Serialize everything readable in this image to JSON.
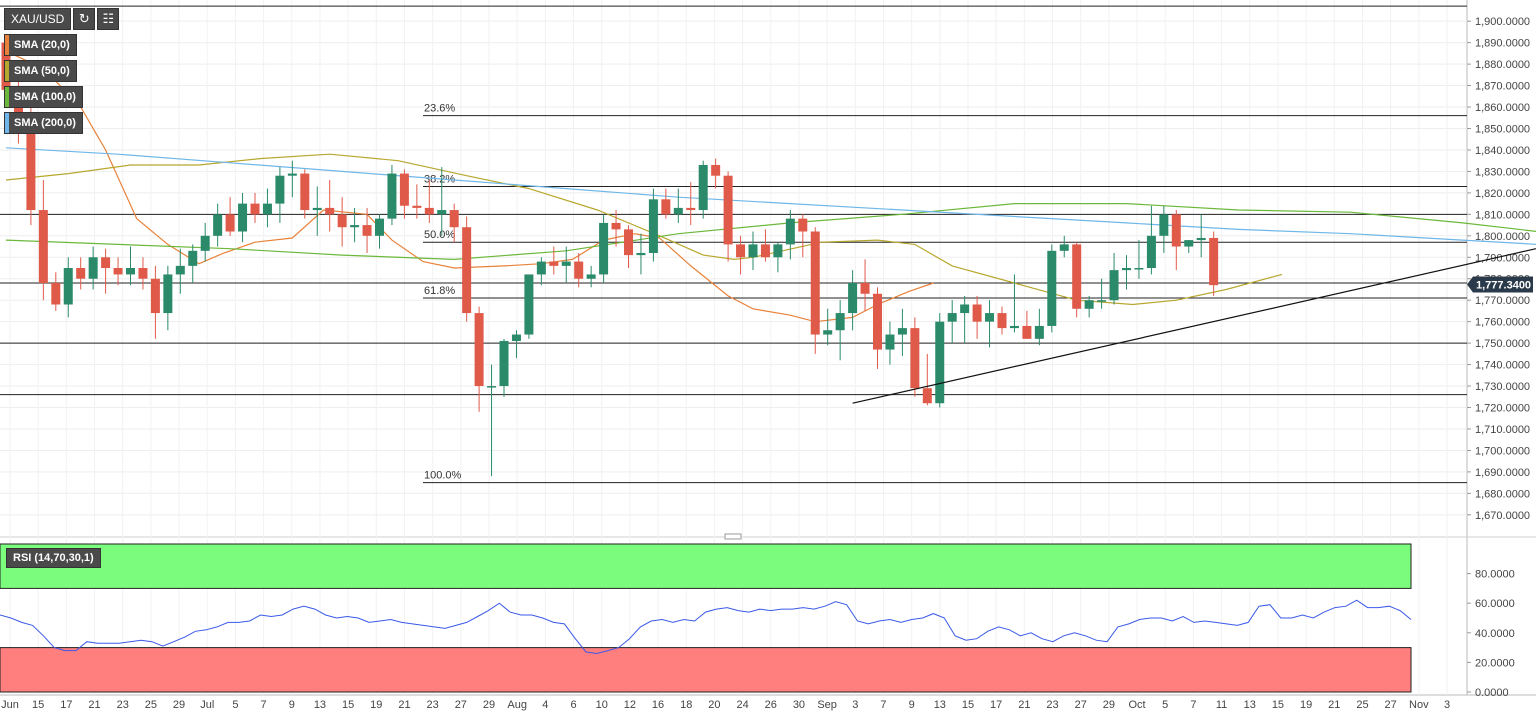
{
  "toolbar": {
    "symbol": "XAU/USD",
    "refresh_icon": "refresh-icon",
    "calendar_icon": "calendar-icon"
  },
  "indicators": [
    {
      "label": "SMA (20,0)",
      "color": "#e8823a"
    },
    {
      "label": "SMA (50,0)",
      "color": "#b8a72e"
    },
    {
      "label": "SMA (100,0)",
      "color": "#6bb83a"
    },
    {
      "label": "SMA (200,0)",
      "color": "#6fb7e8"
    }
  ],
  "rsi_label": "RSI (14,70,30,1)",
  "colors": {
    "bull": "#2a8a6a",
    "bear": "#e05a4a",
    "rsi_line": "#3a5ae8",
    "overbought_fill": "#7cfc7c",
    "oversold_fill": "#ff7f7f",
    "price_tag": "#2b3a4a"
  },
  "chart_data": {
    "type": "candlestick",
    "y_axis_ticks": [
      "1,900.0000",
      "1,890.0000",
      "1,880.0000",
      "1,870.0000",
      "1,860.0000",
      "1,850.0000",
      "1,840.0000",
      "1,830.0000",
      "1,820.0000",
      "1,810.0000",
      "1,800.0000",
      "1,790.0000",
      "1,780.0000",
      "1,770.0000",
      "1,760.0000",
      "1,750.0000",
      "1,740.0000",
      "1,730.0000",
      "1,720.0000",
      "1,710.0000",
      "1,700.0000",
      "1,690.0000",
      "1,680.0000",
      "1,670.0000"
    ],
    "ylim": [
      1662,
      1908
    ],
    "last_price_label": "1,777.3400",
    "last_price": 1777.34,
    "x_labels": [
      "Jun",
      "15",
      "17",
      "21",
      "23",
      "25",
      "29",
      "Jul",
      "5",
      "7",
      "9",
      "13",
      "15",
      "19",
      "21",
      "23",
      "27",
      "29",
      "Aug",
      "4",
      "6",
      "10",
      "12",
      "16",
      "18",
      "20",
      "24",
      "26",
      "30",
      "Sep",
      "3",
      "7",
      "9",
      "13",
      "15",
      "17",
      "21",
      "23",
      "27",
      "29",
      "Oct",
      "5",
      "7",
      "11",
      "13",
      "15",
      "19",
      "21",
      "25",
      "27",
      "Nov",
      "3"
    ],
    "fibonacci": [
      {
        "label": "23.6%",
        "value": 1856
      },
      {
        "label": "38.2%",
        "value": 1823
      },
      {
        "label": "50.0%",
        "value": 1797
      },
      {
        "label": "61.8%",
        "value": 1771
      },
      {
        "label": "100.0%",
        "value": 1685
      }
    ],
    "horizontal_levels": [
      1907,
      1810,
      1778,
      1750,
      1726
    ],
    "candles": [
      [
        1890,
        1893,
        1862,
        1868
      ],
      [
        1868,
        1875,
        1843,
        1853
      ],
      [
        1853,
        1860,
        1805,
        1812
      ],
      [
        1812,
        1826,
        1770,
        1778
      ],
      [
        1778,
        1783,
        1765,
        1768
      ],
      [
        1768,
        1790,
        1762,
        1785
      ],
      [
        1785,
        1790,
        1775,
        1780
      ],
      [
        1780,
        1795,
        1775,
        1790
      ],
      [
        1790,
        1794,
        1773,
        1785
      ],
      [
        1785,
        1790,
        1777,
        1782
      ],
      [
        1782,
        1795,
        1777,
        1785
      ],
      [
        1785,
        1790,
        1775,
        1780
      ],
      [
        1780,
        1786,
        1752,
        1764
      ],
      [
        1764,
        1786,
        1756,
        1782
      ],
      [
        1782,
        1794,
        1773,
        1786
      ],
      [
        1786,
        1796,
        1778,
        1793
      ],
      [
        1793,
        1806,
        1788,
        1800
      ],
      [
        1800,
        1815,
        1795,
        1810
      ],
      [
        1810,
        1818,
        1800,
        1802
      ],
      [
        1802,
        1820,
        1797,
        1815
      ],
      [
        1815,
        1820,
        1806,
        1810
      ],
      [
        1810,
        1822,
        1804,
        1815
      ],
      [
        1815,
        1832,
        1806,
        1828
      ],
      [
        1828,
        1835,
        1818,
        1829
      ],
      [
        1829,
        1831,
        1808,
        1812
      ],
      [
        1812,
        1823,
        1800,
        1813
      ],
      [
        1813,
        1826,
        1802,
        1810
      ],
      [
        1810,
        1818,
        1795,
        1804
      ],
      [
        1804,
        1813,
        1797,
        1805
      ],
      [
        1805,
        1813,
        1792,
        1800
      ],
      [
        1800,
        1810,
        1794,
        1808
      ],
      [
        1808,
        1833,
        1805,
        1829
      ],
      [
        1829,
        1831,
        1808,
        1814
      ],
      [
        1814,
        1824,
        1808,
        1813
      ],
      [
        1813,
        1826,
        1806,
        1810
      ],
      [
        1810,
        1832,
        1800,
        1812
      ],
      [
        1812,
        1815,
        1797,
        1804
      ],
      [
        1804,
        1809,
        1760,
        1764
      ],
      [
        1764,
        1767,
        1718,
        1730
      ],
      [
        1730,
        1740,
        1688,
        1730
      ],
      [
        1730,
        1752,
        1725,
        1751
      ],
      [
        1751,
        1756,
        1743,
        1754
      ],
      [
        1754,
        1780,
        1752,
        1782
      ],
      [
        1782,
        1790,
        1777,
        1788
      ],
      [
        1788,
        1795,
        1782,
        1786
      ],
      [
        1786,
        1795,
        1778,
        1788
      ],
      [
        1788,
        1792,
        1776,
        1780
      ],
      [
        1780,
        1786,
        1776,
        1782
      ],
      [
        1782,
        1810,
        1778,
        1806
      ],
      [
        1806,
        1812,
        1795,
        1803
      ],
      [
        1803,
        1805,
        1785,
        1791
      ],
      [
        1791,
        1801,
        1782,
        1792
      ],
      [
        1792,
        1822,
        1788,
        1817
      ],
      [
        1817,
        1822,
        1808,
        1810
      ],
      [
        1810,
        1822,
        1806,
        1813
      ],
      [
        1813,
        1825,
        1805,
        1812
      ],
      [
        1812,
        1835,
        1808,
        1833
      ],
      [
        1833,
        1836,
        1822,
        1828
      ],
      [
        1828,
        1830,
        1788,
        1796
      ],
      [
        1796,
        1800,
        1782,
        1790
      ],
      [
        1790,
        1802,
        1784,
        1796
      ],
      [
        1796,
        1803,
        1788,
        1790
      ],
      [
        1790,
        1797,
        1783,
        1796
      ],
      [
        1796,
        1812,
        1789,
        1808
      ],
      [
        1808,
        1810,
        1790,
        1802
      ],
      [
        1802,
        1804,
        1745,
        1754
      ],
      [
        1754,
        1766,
        1749,
        1756
      ],
      [
        1756,
        1770,
        1742,
        1764
      ],
      [
        1764,
        1784,
        1756,
        1778
      ],
      [
        1778,
        1789,
        1765,
        1773
      ],
      [
        1773,
        1776,
        1738,
        1747
      ],
      [
        1747,
        1760,
        1740,
        1754
      ],
      [
        1754,
        1766,
        1744,
        1757
      ],
      [
        1757,
        1762,
        1725,
        1729
      ],
      [
        1729,
        1745,
        1721,
        1722
      ],
      [
        1722,
        1764,
        1720,
        1760
      ],
      [
        1760,
        1770,
        1750,
        1764
      ],
      [
        1764,
        1772,
        1750,
        1768
      ],
      [
        1768,
        1772,
        1752,
        1760
      ],
      [
        1760,
        1770,
        1748,
        1764
      ],
      [
        1764,
        1767,
        1754,
        1757
      ],
      [
        1757,
        1782,
        1755,
        1758
      ],
      [
        1758,
        1765,
        1752,
        1752
      ],
      [
        1752,
        1766,
        1749,
        1758
      ],
      [
        1758,
        1796,
        1755,
        1793
      ],
      [
        1793,
        1800,
        1790,
        1796
      ],
      [
        1796,
        1797,
        1762,
        1766
      ],
      [
        1766,
        1772,
        1762,
        1770
      ],
      [
        1770,
        1780,
        1766,
        1770
      ],
      [
        1770,
        1792,
        1768,
        1784
      ],
      [
        1784,
        1791,
        1775,
        1785
      ],
      [
        1785,
        1798,
        1780,
        1785
      ],
      [
        1785,
        1814,
        1782,
        1800
      ],
      [
        1800,
        1814,
        1792,
        1810
      ],
      [
        1810,
        1812,
        1784,
        1795
      ],
      [
        1795,
        1798,
        1792,
        1798
      ],
      [
        1798,
        1810,
        1790,
        1799
      ],
      [
        1799,
        1802,
        1772,
        1777
      ]
    ],
    "sma": [
      {
        "name": "SMA (20,0)",
        "color": "#e8823a",
        "points": [
          [
            0,
            1886
          ],
          [
            6,
            1878
          ],
          [
            12,
            1860
          ],
          [
            16,
            1840
          ],
          [
            21,
            1808
          ],
          [
            26,
            1796
          ],
          [
            31,
            1787
          ],
          [
            35,
            1792
          ],
          [
            40,
            1797
          ],
          [
            46,
            1799
          ],
          [
            51,
            1812
          ],
          [
            58,
            1810
          ],
          [
            62,
            1798
          ],
          [
            67,
            1788
          ],
          [
            72,
            1785
          ],
          [
            80,
            1786
          ],
          [
            86,
            1787
          ],
          [
            91,
            1789
          ],
          [
            96,
            1798
          ],
          [
            101,
            1801
          ],
          [
            105,
            1799
          ],
          [
            110,
            1786
          ],
          [
            116,
            1772
          ],
          [
            120,
            1766
          ],
          [
            126,
            1763
          ],
          [
            130,
            1760
          ],
          [
            136,
            1762
          ],
          [
            140,
            1768
          ],
          [
            145,
            1774
          ],
          [
            149,
            1778
          ]
        ]
      },
      {
        "name": "SMA (50,0)",
        "color": "#b8a72e",
        "points": [
          [
            0,
            1826
          ],
          [
            10,
            1829
          ],
          [
            20,
            1833
          ],
          [
            31,
            1833
          ],
          [
            41,
            1836
          ],
          [
            52,
            1838
          ],
          [
            63,
            1835
          ],
          [
            74,
            1828
          ],
          [
            84,
            1822
          ],
          [
            95,
            1812
          ],
          [
            105,
            1800
          ],
          [
            112,
            1791
          ],
          [
            117,
            1789
          ],
          [
            120,
            1790
          ],
          [
            131,
            1797
          ],
          [
            140,
            1798
          ],
          [
            146,
            1796
          ],
          [
            152,
            1786
          ],
          [
            162,
            1778
          ],
          [
            172,
            1770
          ],
          [
            181,
            1768
          ],
          [
            188,
            1770
          ],
          [
            196,
            1775
          ],
          [
            205,
            1782
          ]
        ]
      },
      {
        "name": "SMA (100,0)",
        "color": "#6bb83a",
        "points": [
          [
            0,
            1798
          ],
          [
            18,
            1796
          ],
          [
            36,
            1794
          ],
          [
            54,
            1791
          ],
          [
            72,
            1789
          ],
          [
            90,
            1793
          ],
          [
            108,
            1801
          ],
          [
            126,
            1806
          ],
          [
            144,
            1810
          ],
          [
            162,
            1815
          ],
          [
            180,
            1815
          ],
          [
            198,
            1812
          ],
          [
            216,
            1811
          ],
          [
            234,
            1806
          ],
          [
            252,
            1800
          ],
          [
            270,
            1794
          ],
          [
            288,
            1790
          ]
        ]
      },
      {
        "name": "SMA (200,0)",
        "color": "#6fb7e8",
        "points": [
          [
            0,
            1841
          ],
          [
            18,
            1838
          ],
          [
            36,
            1834
          ],
          [
            54,
            1830
          ],
          [
            72,
            1826
          ],
          [
            90,
            1822
          ],
          [
            108,
            1818
          ],
          [
            126,
            1815
          ],
          [
            144,
            1812
          ],
          [
            162,
            1809
          ],
          [
            180,
            1806
          ],
          [
            198,
            1803
          ],
          [
            216,
            1801
          ],
          [
            234,
            1798
          ],
          [
            252,
            1795
          ],
          [
            270,
            1793
          ],
          [
            288,
            1791
          ]
        ]
      }
    ],
    "trendline": [
      [
        1722,
        0
      ],
      [
        1797,
        1
      ]
    ],
    "rsi": {
      "ticks": [
        "80.0000",
        "60.0000",
        "40.0000",
        "20.0000",
        "0.0000"
      ],
      "ylim": [
        0,
        100
      ],
      "overbought": 70,
      "oversold": 30,
      "values": [
        52,
        50,
        47,
        45,
        38,
        30,
        28,
        28,
        34,
        33,
        33,
        33,
        34,
        35,
        34,
        31,
        34,
        37,
        41,
        42,
        44,
        47,
        47,
        48,
        52,
        51,
        52,
        56,
        58,
        56,
        52,
        50,
        51,
        50,
        47,
        48,
        49,
        47,
        46,
        45,
        44,
        43,
        45,
        47,
        51,
        55,
        60,
        54,
        52,
        52,
        50,
        47,
        46,
        36,
        27,
        26,
        28,
        30,
        36,
        44,
        48,
        49,
        47,
        49,
        48,
        54,
        56,
        57,
        55,
        54,
        56,
        55,
        56,
        56,
        57,
        56,
        58,
        61,
        59,
        48,
        46,
        48,
        49,
        47,
        49,
        50,
        53,
        50,
        38,
        35,
        36,
        41,
        44,
        42,
        38,
        40,
        36,
        34,
        38,
        40,
        38,
        35,
        34,
        44,
        46,
        49,
        50,
        50,
        48,
        51,
        47,
        48,
        47,
        46,
        45,
        47,
        58,
        59,
        50,
        50,
        52,
        50,
        54,
        57,
        58,
        62,
        57,
        57,
        58,
        55,
        49
      ]
    }
  }
}
